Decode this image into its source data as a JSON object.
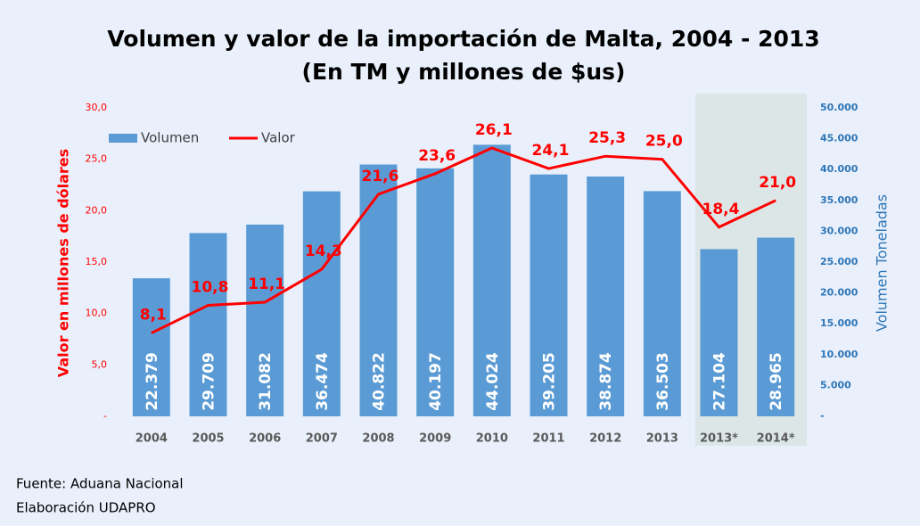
{
  "chart_data": {
    "type": "bar_line",
    "title": "Volumen y valor de la importación de Malta, 2004 - 2013",
    "subtitle": "(En TM y millones de $us)",
    "y_label": "Valor en millones de dólares",
    "y2_label": "Volumen Toneladas",
    "categories": [
      "2004",
      "2005",
      "2006",
      "2007",
      "2008",
      "2009",
      "2010",
      "2011",
      "2012",
      "2013",
      "2013*",
      "2014*"
    ],
    "series": [
      {
        "name": "Volumen",
        "type": "bar",
        "axis": "y2",
        "color": "#5b9bd5",
        "values": [
          22379,
          29709,
          31082,
          36474,
          40822,
          40197,
          44024,
          39205,
          38874,
          36503,
          27104,
          28965
        ],
        "value_labels": [
          "22.379",
          "29.709",
          "31.082",
          "36.474",
          "40.822",
          "40.197",
          "44.024",
          "39.205",
          "38.874",
          "36.503",
          "27.104",
          "28.965"
        ]
      },
      {
        "name": "Valor",
        "type": "line",
        "axis": "y",
        "color": "#ff0000",
        "values": [
          8.1,
          10.8,
          11.1,
          14.3,
          21.6,
          23.6,
          26.1,
          24.1,
          25.3,
          25.0,
          18.4,
          21.0
        ],
        "value_labels": [
          "8,1",
          "10,8",
          "11,1",
          "14,3",
          "21,6",
          "23,6",
          "26,1",
          "24,1",
          "25,3",
          "25,0",
          "18,4",
          "21,0"
        ]
      }
    ],
    "ylim": [
      0,
      30
    ],
    "yticks": [
      {
        "value": 0,
        "label": "-"
      },
      {
        "value": 5,
        "label": "5,0"
      },
      {
        "value": 10,
        "label": "10,0"
      },
      {
        "value": 15,
        "label": "15,0"
      },
      {
        "value": 20,
        "label": "20,0"
      },
      {
        "value": 25,
        "label": "25,0"
      },
      {
        "value": 30,
        "label": "30,0"
      }
    ],
    "y2lim": [
      0,
      50000
    ],
    "y2ticks": [
      {
        "value": 0,
        "label": "-"
      },
      {
        "value": 5000,
        "label": "5.000"
      },
      {
        "value": 10000,
        "label": "10.000"
      },
      {
        "value": 15000,
        "label": "15.000"
      },
      {
        "value": 20000,
        "label": "20.000"
      },
      {
        "value": 25000,
        "label": "25.000"
      },
      {
        "value": 30000,
        "label": "30.000"
      },
      {
        "value": 35000,
        "label": "35.000"
      },
      {
        "value": 40000,
        "label": "40.000"
      },
      {
        "value": 45000,
        "label": "45.000"
      },
      {
        "value": 50000,
        "label": "50.000"
      }
    ],
    "legend": "upper left",
    "notes": [
      "Fuente: Aduana Nacional",
      "Elaboración UDAPRO"
    ]
  }
}
